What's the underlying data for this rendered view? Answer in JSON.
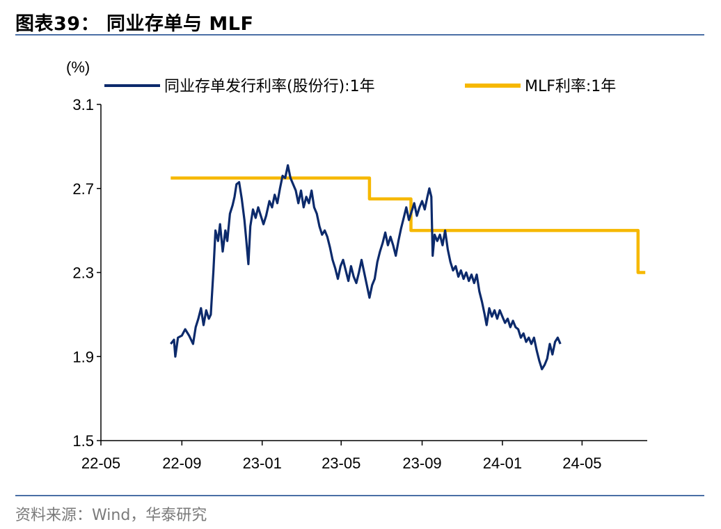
{
  "figure": {
    "title": "图表39： 同业存单与 MLF",
    "source": "资料来源：Wind，华泰研究"
  },
  "chart_data": {
    "type": "line",
    "unit_label": "(%)",
    "ylim": [
      1.5,
      3.1
    ],
    "yticks": [
      "3.1",
      "2.7",
      "2.3",
      "1.9",
      "1.5"
    ],
    "ytick_values": [
      3.1,
      2.7,
      2.3,
      1.9,
      1.5
    ],
    "xlim": [
      "2022-05-01",
      "2024-08-08"
    ],
    "xticks": [
      "22-05",
      "22-09",
      "23-01",
      "23-05",
      "23-09",
      "24-01",
      "24-05"
    ],
    "xtick_dates": [
      "2022-05-01",
      "2022-09-01",
      "2023-01-01",
      "2023-05-01",
      "2023-09-01",
      "2024-01-01",
      "2024-05-01"
    ],
    "grid": false,
    "legend_position": "top",
    "series": [
      {
        "name": "同业存单发行利率(股份行):1年",
        "color": "#0c2a6b",
        "points": [
          [
            "2022-08-15",
            1.96
          ],
          [
            "2022-08-20",
            1.98
          ],
          [
            "2022-08-22",
            1.9
          ],
          [
            "2022-08-26",
            1.99
          ],
          [
            "2022-09-01",
            2.0
          ],
          [
            "2022-09-06",
            2.03
          ],
          [
            "2022-09-12",
            2.0
          ],
          [
            "2022-09-18",
            1.96
          ],
          [
            "2022-09-22",
            2.04
          ],
          [
            "2022-09-26",
            2.08
          ],
          [
            "2022-09-30",
            2.13
          ],
          [
            "2022-10-04",
            2.05
          ],
          [
            "2022-10-08",
            2.12
          ],
          [
            "2022-10-12",
            2.08
          ],
          [
            "2022-10-15",
            2.1
          ],
          [
            "2022-10-19",
            2.31
          ],
          [
            "2022-10-22",
            2.5
          ],
          [
            "2022-10-26",
            2.45
          ],
          [
            "2022-10-29",
            2.53
          ],
          [
            "2022-11-02",
            2.4
          ],
          [
            "2022-11-06",
            2.5
          ],
          [
            "2022-11-09",
            2.45
          ],
          [
            "2022-11-13",
            2.58
          ],
          [
            "2022-11-17",
            2.62
          ],
          [
            "2022-11-20",
            2.66
          ],
          [
            "2022-11-23",
            2.72
          ],
          [
            "2022-11-27",
            2.73
          ],
          [
            "2022-12-01",
            2.65
          ],
          [
            "2022-12-05",
            2.55
          ],
          [
            "2022-12-08",
            2.45
          ],
          [
            "2022-12-11",
            2.34
          ],
          [
            "2022-12-14",
            2.52
          ],
          [
            "2022-12-18",
            2.6
          ],
          [
            "2022-12-22",
            2.56
          ],
          [
            "2022-12-26",
            2.61
          ],
          [
            "2022-12-30",
            2.57
          ],
          [
            "2023-01-03",
            2.53
          ],
          [
            "2023-01-07",
            2.57
          ],
          [
            "2023-01-12",
            2.64
          ],
          [
            "2023-01-16",
            2.61
          ],
          [
            "2023-01-20",
            2.67
          ],
          [
            "2023-01-24",
            2.63
          ],
          [
            "2023-01-28",
            2.7
          ],
          [
            "2023-02-01",
            2.76
          ],
          [
            "2023-02-05",
            2.75
          ],
          [
            "2023-02-09",
            2.81
          ],
          [
            "2023-02-13",
            2.75
          ],
          [
            "2023-02-17",
            2.72
          ],
          [
            "2023-02-21",
            2.69
          ],
          [
            "2023-02-25",
            2.63
          ],
          [
            "2023-03-01",
            2.69
          ],
          [
            "2023-03-05",
            2.61
          ],
          [
            "2023-03-09",
            2.66
          ],
          [
            "2023-03-13",
            2.63
          ],
          [
            "2023-03-17",
            2.69
          ],
          [
            "2023-03-21",
            2.61
          ],
          [
            "2023-03-25",
            2.58
          ],
          [
            "2023-03-29",
            2.52
          ],
          [
            "2023-04-02",
            2.48
          ],
          [
            "2023-04-06",
            2.5
          ],
          [
            "2023-04-10",
            2.47
          ],
          [
            "2023-04-14",
            2.42
          ],
          [
            "2023-04-18",
            2.36
          ],
          [
            "2023-04-22",
            2.32
          ],
          [
            "2023-04-26",
            2.27
          ],
          [
            "2023-04-30",
            2.33
          ],
          [
            "2023-05-04",
            2.36
          ],
          [
            "2023-05-08",
            2.31
          ],
          [
            "2023-05-12",
            2.26
          ],
          [
            "2023-05-16",
            2.33
          ],
          [
            "2023-05-20",
            2.28
          ],
          [
            "2023-05-24",
            2.25
          ],
          [
            "2023-05-28",
            2.3
          ],
          [
            "2023-06-01",
            2.36
          ],
          [
            "2023-06-05",
            2.3
          ],
          [
            "2023-06-09",
            2.24
          ],
          [
            "2023-06-13",
            2.18
          ],
          [
            "2023-06-17",
            2.24
          ],
          [
            "2023-06-21",
            2.27
          ],
          [
            "2023-06-25",
            2.35
          ],
          [
            "2023-06-29",
            2.4
          ],
          [
            "2023-07-03",
            2.44
          ],
          [
            "2023-07-07",
            2.49
          ],
          [
            "2023-07-11",
            2.43
          ],
          [
            "2023-07-15",
            2.47
          ],
          [
            "2023-07-19",
            2.43
          ],
          [
            "2023-07-23",
            2.38
          ],
          [
            "2023-07-27",
            2.45
          ],
          [
            "2023-07-31",
            2.51
          ],
          [
            "2023-08-04",
            2.56
          ],
          [
            "2023-08-08",
            2.61
          ],
          [
            "2023-08-12",
            2.55
          ],
          [
            "2023-08-16",
            2.59
          ],
          [
            "2023-08-20",
            2.63
          ],
          [
            "2023-08-24",
            2.57
          ],
          [
            "2023-08-28",
            2.61
          ],
          [
            "2023-09-01",
            2.64
          ],
          [
            "2023-09-05",
            2.6
          ],
          [
            "2023-09-09",
            2.66
          ],
          [
            "2023-09-12",
            2.7
          ],
          [
            "2023-09-15",
            2.66
          ],
          [
            "2023-09-17",
            2.38
          ],
          [
            "2023-09-20",
            2.48
          ],
          [
            "2023-09-24",
            2.45
          ],
          [
            "2023-09-28",
            2.48
          ],
          [
            "2023-10-02",
            2.43
          ],
          [
            "2023-10-06",
            2.5
          ],
          [
            "2023-10-10",
            2.41
          ],
          [
            "2023-10-14",
            2.35
          ],
          [
            "2023-10-18",
            2.31
          ],
          [
            "2023-10-22",
            2.33
          ],
          [
            "2023-10-26",
            2.28
          ],
          [
            "2023-10-30",
            2.31
          ],
          [
            "2023-11-03",
            2.27
          ],
          [
            "2023-11-07",
            2.3
          ],
          [
            "2023-11-11",
            2.26
          ],
          [
            "2023-11-15",
            2.29
          ],
          [
            "2023-11-19",
            2.25
          ],
          [
            "2023-11-23",
            2.29
          ],
          [
            "2023-11-27",
            2.21
          ],
          [
            "2023-12-01",
            2.16
          ],
          [
            "2023-12-05",
            2.1
          ],
          [
            "2023-12-08",
            2.05
          ],
          [
            "2023-12-12",
            2.13
          ],
          [
            "2023-12-16",
            2.09
          ],
          [
            "2023-12-20",
            2.12
          ],
          [
            "2023-12-24",
            2.08
          ],
          [
            "2023-12-28",
            2.12
          ],
          [
            "2024-01-01",
            2.09
          ],
          [
            "2024-01-05",
            2.06
          ],
          [
            "2024-01-09",
            2.08
          ],
          [
            "2024-01-13",
            2.04
          ],
          [
            "2024-01-17",
            2.07
          ],
          [
            "2024-01-21",
            2.04
          ],
          [
            "2024-01-25",
            2.03
          ],
          [
            "2024-01-29",
            1.99
          ],
          [
            "2024-02-02",
            2.01
          ],
          [
            "2024-02-06",
            1.97
          ],
          [
            "2024-02-10",
            1.99
          ],
          [
            "2024-02-14",
            1.96
          ],
          [
            "2024-02-18",
            1.99
          ],
          [
            "2024-02-22",
            1.93
          ],
          [
            "2024-02-26",
            1.88
          ],
          [
            "2024-03-01",
            1.84
          ],
          [
            "2024-03-05",
            1.86
          ],
          [
            "2024-03-09",
            1.89
          ],
          [
            "2024-03-13",
            1.96
          ],
          [
            "2024-03-17",
            1.91
          ],
          [
            "2024-03-21",
            1.97
          ],
          [
            "2024-03-25",
            1.99
          ],
          [
            "2024-03-29",
            1.96
          ]
        ]
      },
      {
        "name": "MLF利率:1年",
        "color": "#f6b800",
        "points": [
          [
            "2022-08-15",
            2.75
          ],
          [
            "2023-06-13",
            2.75
          ],
          [
            "2023-06-13",
            2.65
          ],
          [
            "2023-08-15",
            2.65
          ],
          [
            "2023-08-15",
            2.5
          ],
          [
            "2024-07-25",
            2.5
          ],
          [
            "2024-07-25",
            2.3
          ],
          [
            "2024-08-05",
            2.3
          ]
        ]
      }
    ]
  }
}
